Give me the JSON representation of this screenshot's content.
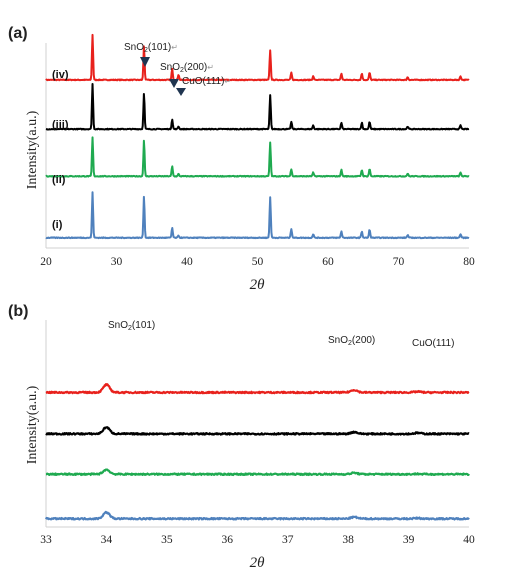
{
  "chart_data": [
    {
      "panel": "(a)",
      "type": "line",
      "xlabel": "2θ",
      "ylabel": "Intensity(a.u.)",
      "xlim": [
        20,
        80
      ],
      "xticks": [
        "20",
        "30",
        "40",
        "50",
        "60",
        "70",
        "80"
      ],
      "y_ticks_shown": false,
      "series_labels": [
        "(iv)",
        "(iii)",
        "(ii)",
        "(i)"
      ],
      "peaks_2theta": [
        26.6,
        33.9,
        37.9,
        38.8,
        51.8,
        54.8,
        57.9,
        61.9,
        64.8,
        65.9,
        71.3,
        78.8
      ],
      "series": [
        {
          "label": "(iv)",
          "color": "#e8211c",
          "baseline": 0.82,
          "peak_heights": [
            1.0,
            0.75,
            0.24,
            0.12,
            0.66,
            0.16,
            0.08,
            0.14,
            0.14,
            0.16,
            0.06,
            0.08
          ]
        },
        {
          "label": "(iii)",
          "color": "#000000",
          "baseline": 0.58,
          "peak_heights": [
            1.0,
            0.8,
            0.22,
            0.06,
            0.75,
            0.16,
            0.08,
            0.14,
            0.14,
            0.16,
            0.06,
            0.08
          ]
        },
        {
          "label": "(ii)",
          "color": "#1faa50",
          "baseline": 0.35,
          "peak_heights": [
            0.86,
            0.8,
            0.22,
            0.05,
            0.75,
            0.16,
            0.08,
            0.14,
            0.14,
            0.16,
            0.06,
            0.08
          ]
        },
        {
          "label": "(i)",
          "color": "#4f81bd",
          "baseline": 0.05,
          "peak_heights": [
            1.0,
            0.92,
            0.22,
            0.05,
            0.9,
            0.2,
            0.08,
            0.14,
            0.14,
            0.18,
            0.06,
            0.08
          ]
        }
      ],
      "annotations": [
        {
          "main": "SnO",
          "sub": "2",
          "rest": "(101)",
          "ret": "↵",
          "marker": true
        },
        {
          "main": "SnO",
          "sub": "2",
          "rest": "(200)",
          "ret": "↵",
          "marker": true
        },
        {
          "main": "CuO(111)",
          "sub": "",
          "rest": "",
          "ret": "↵",
          "marker": true
        }
      ]
    },
    {
      "panel": "(b)",
      "type": "line",
      "xlabel": "2θ",
      "ylabel": "Intensity(a.u.)",
      "xlim": [
        33,
        40
      ],
      "xticks": [
        "33",
        "34",
        "35",
        "36",
        "37",
        "38",
        "39",
        "40"
      ],
      "y_ticks_shown": false,
      "peaks_2theta": [
        34.0,
        38.1,
        39.15
      ],
      "series": [
        {
          "color": "#e8211c",
          "baseline": 0.65,
          "peak_heights": [
            0.17,
            0.055,
            0.018
          ]
        },
        {
          "color": "#000000",
          "baseline": 0.45,
          "peak_heights": [
            0.145,
            0.04,
            0.02
          ]
        },
        {
          "color": "#1faa50",
          "baseline": 0.255,
          "peak_heights": [
            0.1,
            0.03,
            0.008
          ]
        },
        {
          "color": "#4f81bd",
          "baseline": 0.04,
          "peak_heights": [
            0.14,
            0.035,
            0.012
          ]
        }
      ],
      "annotations": [
        {
          "main": "SnO",
          "sub": "2",
          "rest": "(101)",
          "ret": "",
          "marker": false
        },
        {
          "main": "SnO",
          "sub": "2",
          "rest": "(200)",
          "ret": "",
          "marker": false
        },
        {
          "main": "CuO(111",
          "sub": "",
          "rest": ")",
          "ret": "",
          "marker": false
        }
      ]
    }
  ]
}
